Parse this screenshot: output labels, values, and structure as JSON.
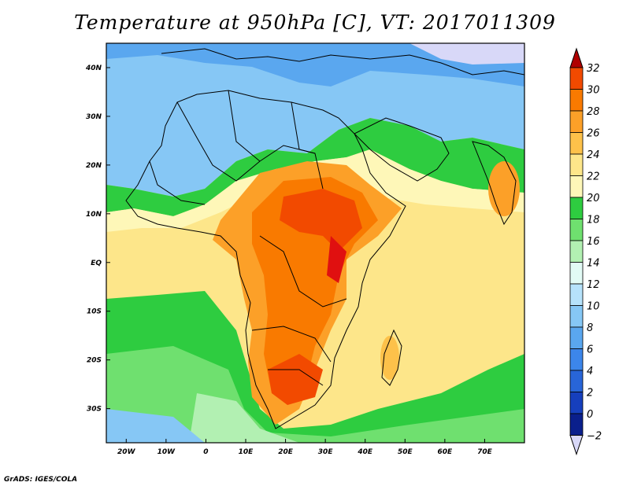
{
  "title": "Temperature at 950hPa [C], VT: 2017011309",
  "credit": "GrADS: IGES/COLA",
  "map": {
    "lon_range": [
      -25,
      80
    ],
    "lat_range": [
      -37,
      45
    ],
    "x_ticks": [
      "20W",
      "10W",
      "0",
      "10E",
      "20E",
      "30E",
      "40E",
      "50E",
      "60E",
      "70E"
    ],
    "y_ticks": [
      "40N",
      "30N",
      "20N",
      "10N",
      "EQ",
      "10S",
      "20S",
      "30S"
    ]
  },
  "colorbar": {
    "labels": [
      "32",
      "30",
      "28",
      "26",
      "24",
      "22",
      "20",
      "18",
      "16",
      "14",
      "12",
      "10",
      "8",
      "6",
      "4",
      "2",
      "0",
      "−2"
    ],
    "colors": [
      "#e01010",
      "#f24a00",
      "#f97a00",
      "#fca028",
      "#fdc14a",
      "#fde68a",
      "#fef7b8",
      "#2ecc40",
      "#6fe06f",
      "#b2f0b2",
      "#e2fbf5",
      "#b6e2fb",
      "#86c7f5",
      "#5aa7ef",
      "#3c86ea",
      "#2865d8",
      "#163fbd",
      "#0a1f8c"
    ],
    "top_arrow_color": "#b00000",
    "bottom_arrow_color": "#d8d8f8"
  }
}
